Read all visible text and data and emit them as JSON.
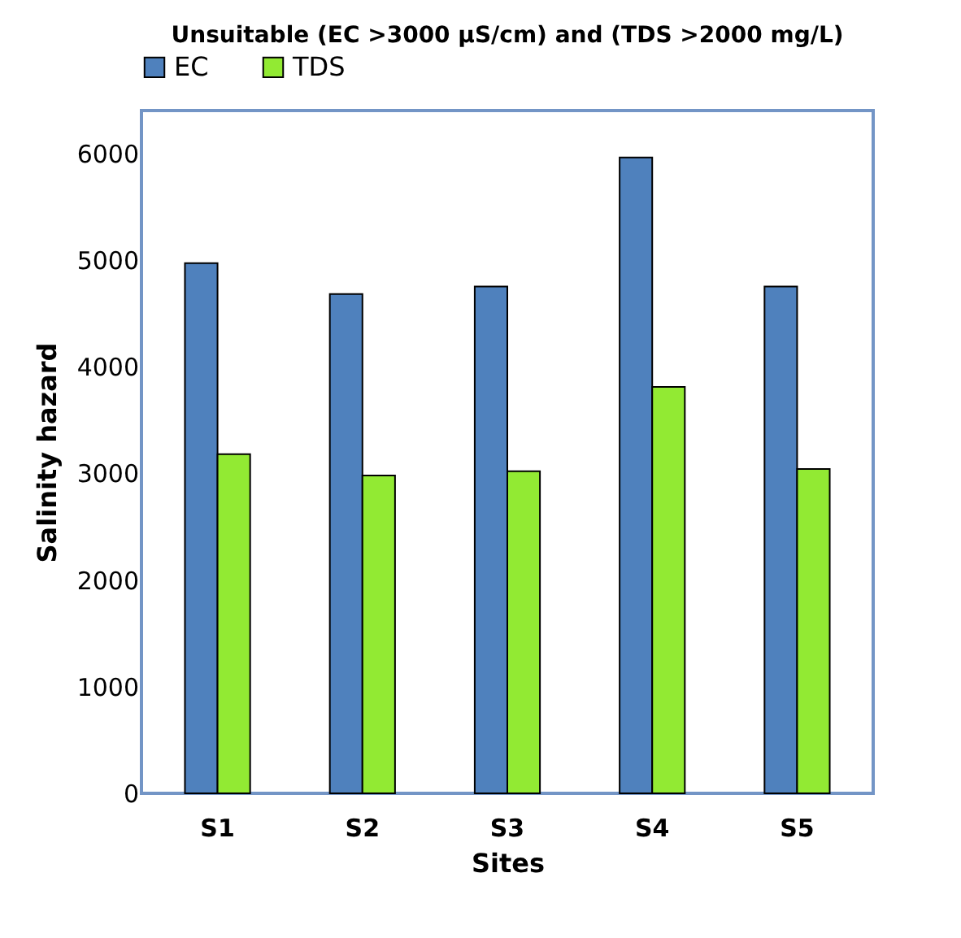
{
  "chart_data": {
    "type": "bar",
    "title": "Unsuitable (EC >3000 µS/cm) and (TDS >2000 mg/L)",
    "xlabel": "Sites",
    "ylabel": "Salinity hazard",
    "categories": [
      "S1",
      "S2",
      "S3",
      "S4",
      "S5"
    ],
    "series": [
      {
        "name": "EC",
        "color": "#4f81bd",
        "values": [
          4970,
          4680,
          4750,
          5960,
          4750
        ]
      },
      {
        "name": "TDS",
        "color": "#92ea33",
        "values": [
          3180,
          2980,
          3020,
          3810,
          3040
        ]
      }
    ],
    "ylim": [
      0,
      6400
    ],
    "yticks": [
      0,
      1000,
      2000,
      3000,
      4000,
      5000,
      6000
    ],
    "legend": "top",
    "grid": false
  }
}
